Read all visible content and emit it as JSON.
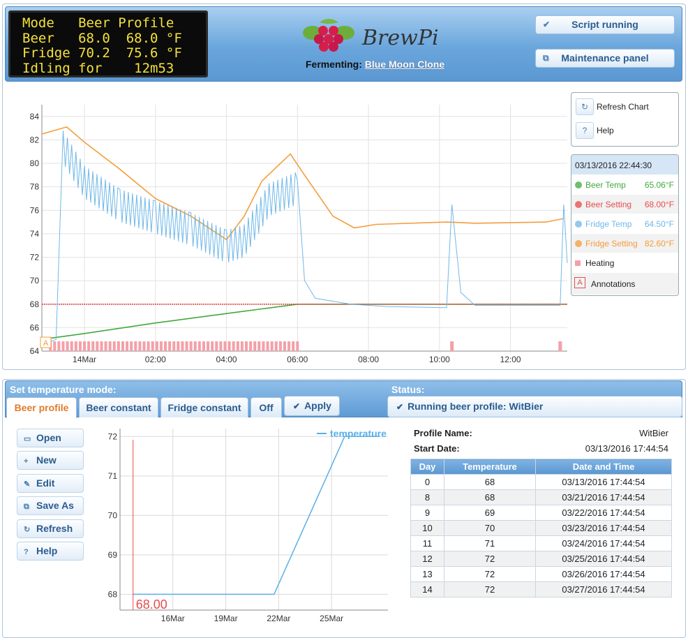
{
  "lcd": {
    "lines": [
      "Mode   Beer Profile",
      "Beer   68.0  68.0 °F",
      "Fridge 70.2  75.6 °F",
      "Idling for    12m53"
    ]
  },
  "header": {
    "logo_text": "BrewPi",
    "fermenting_label": "Fermenting:",
    "fermenting_value": "Blue Moon Clone",
    "script_button": "Script running",
    "maintenance_button": "Maintenance panel"
  },
  "chart_controls": {
    "refresh": "Refresh Chart",
    "help": "Help",
    "help_icon": "?"
  },
  "legend": {
    "timestamp": "03/13/2016 22:44:30",
    "items": [
      {
        "name": "Beer Temp",
        "value": "65.06°F",
        "color": "#41a83e"
      },
      {
        "name": "Beer Setting",
        "value": "68.00°F",
        "color": "#e84b4b"
      },
      {
        "name": "Fridge Temp",
        "value": "64.50°F",
        "color": "#6fb8e8"
      },
      {
        "name": "Fridge Setting",
        "value": "82.60°F",
        "color": "#f39d3b"
      },
      {
        "name": "Heating",
        "value": "",
        "color": "#f4a0a8"
      },
      {
        "name": "Annotations",
        "value": "",
        "color": "#e05050"
      }
    ],
    "annotation_marker": "A"
  },
  "chart_data": [
    {
      "type": "line",
      "y_ticks": [
        64,
        66,
        68,
        70,
        72,
        74,
        76,
        78,
        80,
        82,
        84
      ],
      "x_ticks": [
        "14Mar",
        "02:00",
        "04:00",
        "06:00",
        "08:00",
        "10:00",
        "12:00"
      ],
      "ylim": [
        64,
        85
      ],
      "xlim_hours": [
        -1.2,
        13.6
      ],
      "series": [
        {
          "name": "Beer Temp",
          "color": "#41a83e",
          "points": [
            [
              -1.2,
              65.0
            ],
            [
              0,
              65.5
            ],
            [
              2,
              66.4
            ],
            [
              4,
              67.2
            ],
            [
              5,
              67.6
            ],
            [
              6,
              68.0
            ],
            [
              7,
              68.0
            ],
            [
              10,
              68.0
            ],
            [
              13.6,
              68.0
            ]
          ]
        },
        {
          "name": "Beer Setting",
          "color": "#e84b4b",
          "points": [
            [
              -1.2,
              68.0
            ],
            [
              13.6,
              68.0
            ]
          ]
        },
        {
          "name": "Fridge Setting",
          "color": "#f39d3b",
          "points": [
            [
              -1.2,
              82.5
            ],
            [
              -0.5,
              83.1
            ],
            [
              0,
              81.8
            ],
            [
              1,
              79.5
            ],
            [
              2,
              77.0
            ],
            [
              3,
              75.5
            ],
            [
              3.5,
              74.5
            ],
            [
              4,
              73.5
            ],
            [
              4.5,
              75.5
            ],
            [
              5,
              78.5
            ],
            [
              5.8,
              80.8
            ],
            [
              6.2,
              79.0
            ],
            [
              7,
              75.5
            ],
            [
              7.6,
              74.5
            ],
            [
              8.2,
              74.8
            ],
            [
              10.2,
              75.0
            ],
            [
              11,
              74.9
            ],
            [
              13,
              75.0
            ],
            [
              13.5,
              75.3
            ]
          ]
        },
        {
          "name": "Fridge Temp",
          "color": "#6fb8e8",
          "points": [
            [
              -1.2,
              64.5
            ],
            [
              -0.8,
              65.0
            ],
            [
              -0.6,
              82.0
            ],
            [
              0,
              79.0
            ],
            [
              1,
              77.0
            ],
            [
              2,
              76.0
            ],
            [
              3,
              75.0
            ],
            [
              4,
              73.5
            ],
            [
              4.5,
              74.0
            ],
            [
              5.2,
              77.5
            ],
            [
              6.0,
              78.5
            ],
            [
              6.2,
              70.0
            ],
            [
              6.5,
              68.5
            ],
            [
              7.5,
              68.0
            ],
            [
              8.5,
              67.8
            ],
            [
              10.2,
              67.7
            ],
            [
              10.35,
              76.5
            ],
            [
              10.6,
              69.0
            ],
            [
              11,
              67.9
            ],
            [
              13.4,
              67.9
            ],
            [
              13.5,
              76.5
            ],
            [
              13.6,
              71.5
            ]
          ]
        }
      ],
      "heating_on_hours": [
        [
          -1.0,
          6.0
        ],
        [
          10.3,
          10.4
        ],
        [
          13.35,
          13.45
        ]
      ]
    },
    {
      "type": "line",
      "title": "",
      "series": [
        {
          "name": "temperature",
          "color": "#5aaee8",
          "points": [
            [
              "13Mar",
              68
            ],
            [
              "21Mar",
              68
            ],
            [
              "25Mar",
              72
            ],
            [
              "27Mar",
              72
            ]
          ]
        }
      ],
      "y_ticks": [
        68,
        69,
        70,
        71,
        72
      ],
      "x_ticks": [
        "16Mar",
        "19Mar",
        "22Mar",
        "25Mar"
      ],
      "ylim": [
        67.6,
        72.2
      ],
      "current_marker": "68.00"
    }
  ],
  "control": {
    "mode_label": "Set temperature mode:",
    "status_label": "Status:",
    "tabs": [
      "Beer profile",
      "Beer constant",
      "Fridge constant",
      "Off"
    ],
    "apply": "Apply",
    "status_text": "Running beer profile: WitBier"
  },
  "profile_buttons": [
    "Open",
    "New",
    "Edit",
    "Save As",
    "Refresh",
    "Help"
  ],
  "profile": {
    "name_label": "Profile Name:",
    "name_value": "WitBier",
    "start_label": "Start Date:",
    "start_value": "03/13/2016 17:44:54",
    "columns": [
      "Day",
      "Temperature",
      "Date and Time"
    ],
    "rows": [
      [
        "0",
        "68",
        "03/13/2016 17:44:54"
      ],
      [
        "8",
        "68",
        "03/21/2016 17:44:54"
      ],
      [
        "9",
        "69",
        "03/22/2016 17:44:54"
      ],
      [
        "10",
        "70",
        "03/23/2016 17:44:54"
      ],
      [
        "11",
        "71",
        "03/24/2016 17:44:54"
      ],
      [
        "12",
        "72",
        "03/25/2016 17:44:54"
      ],
      [
        "13",
        "72",
        "03/26/2016 17:44:54"
      ],
      [
        "14",
        "72",
        "03/27/2016 17:44:54"
      ]
    ]
  }
}
